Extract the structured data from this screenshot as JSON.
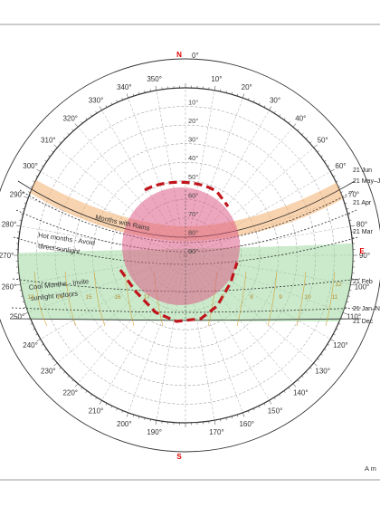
{
  "cardinals": {
    "north": "N",
    "south": "S",
    "east": "E"
  },
  "azimuth_labels": [
    "0°",
    "10°",
    "20°",
    "30°",
    "40°",
    "50°",
    "60°",
    "70°",
    "80°",
    "90°",
    "100°",
    "110°",
    "120°",
    "130°",
    "140°",
    "150°",
    "160°",
    "170°",
    "180°",
    "190°",
    "200°",
    "210°",
    "220°",
    "230°",
    "240°",
    "250°",
    "260°",
    "270°",
    "280°",
    "290°",
    "300°",
    "310°",
    "320°",
    "330°",
    "340°",
    "350°"
  ],
  "altitude_labels": [
    "10°",
    "20°",
    "30°",
    "40°",
    "50°",
    "60°",
    "70°",
    "80°",
    "90°"
  ],
  "annotations": {
    "rains": "Months with Rains",
    "hot_line1": "Hot months - Avoid",
    "hot_line2": "direct sunlight",
    "cool_line1": "Cool Months - Invite",
    "cool_line2": "sunlight indoors"
  },
  "date_labels": [
    "21 Jun",
    "21 May–Jul",
    "21 Apr",
    "21 Mar",
    "21 Feb",
    "21 Jan–Nov",
    "21 Dec"
  ],
  "hour_labels": [
    "13",
    "14",
    "15",
    "16",
    "17",
    "7",
    "8",
    "9",
    "10",
    "11",
    "12"
  ],
  "footer": "A m",
  "colors": {
    "rain_band": "#f4b57a",
    "cool_band": "#9fd9a0",
    "shade_zone": "#dc5c86",
    "dashed_outline": "#c0151c",
    "cardinal": "#e00000",
    "sun_path": "#2a2a2a",
    "hour_curve": "#d3a23a"
  }
}
